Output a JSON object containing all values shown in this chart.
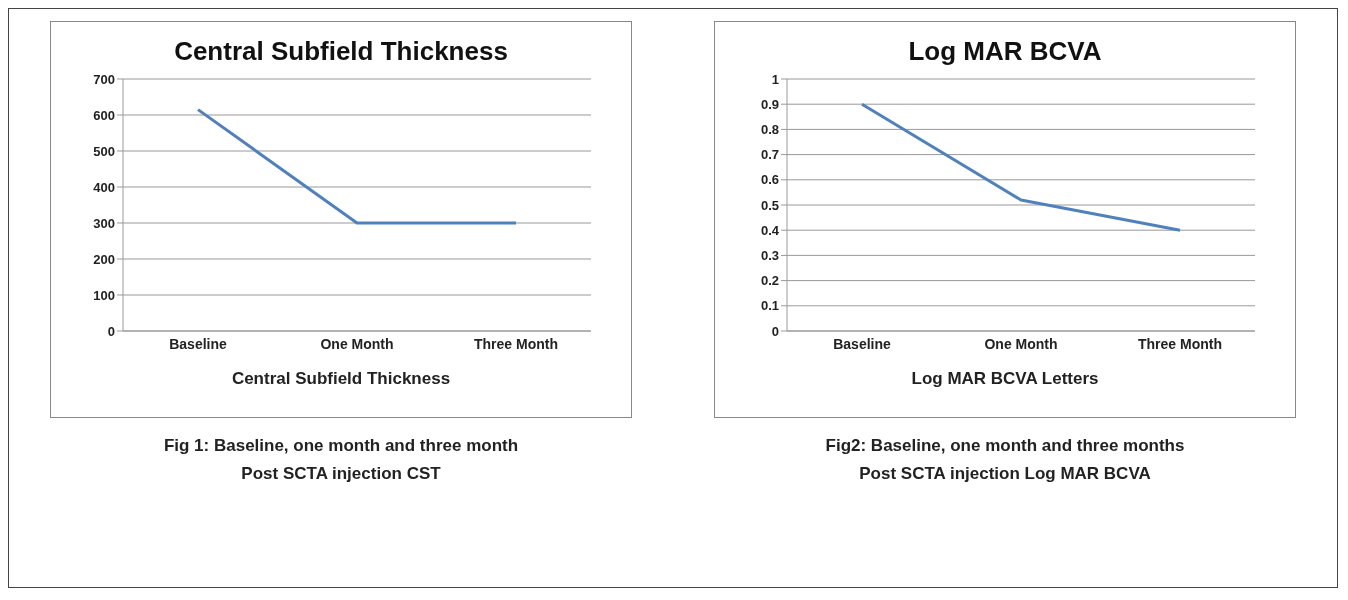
{
  "chart_data": [
    {
      "type": "line",
      "title": "Central Subfield Thickness",
      "xlabel": "Central Subfield Thickness",
      "categories": [
        "Baseline",
        "One Month",
        "Three Month"
      ],
      "values": [
        615,
        300,
        300
      ],
      "color": "#4f81bd",
      "ylim": [
        0,
        700
      ],
      "yticks": [
        0,
        100,
        200,
        300,
        400,
        500,
        600,
        700
      ],
      "grid": "y",
      "marker": "none",
      "annotations": [
        "Fig 1: Baseline, one month and three month",
        "Post SCTA injection CST"
      ]
    },
    {
      "type": "line",
      "title": "Log MAR BCVA",
      "xlabel": "Log MAR BCVA Letters",
      "categories": [
        "Baseline",
        "One Month",
        "Three Month"
      ],
      "values": [
        0.9,
        0.52,
        0.4
      ],
      "color": "#4f81bd",
      "ylim": [
        0,
        1
      ],
      "yticks": [
        0,
        0.1,
        0.2,
        0.3,
        0.4,
        0.5,
        0.6,
        0.7,
        0.8,
        0.9,
        1
      ],
      "grid": "y",
      "marker": "none",
      "annotations": [
        "Fig2: Baseline, one month and three months",
        "Post SCTA injection Log MAR BCVA"
      ]
    }
  ]
}
